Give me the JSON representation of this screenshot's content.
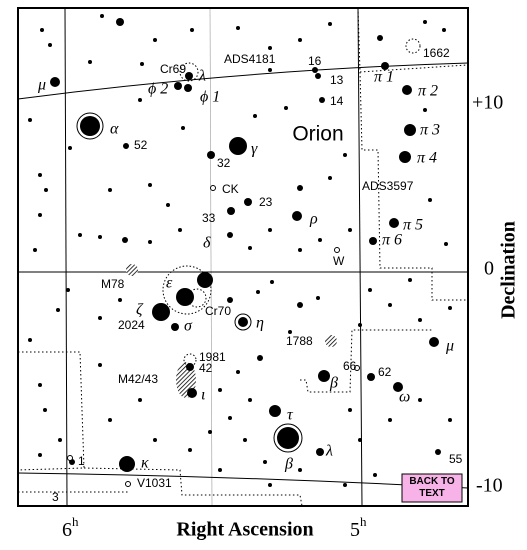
{
  "map": {
    "title": "Orion",
    "axes": {
      "x_label": "Right Ascension",
      "y_label": "Declination",
      "x_ticks": [
        {
          "main": "6",
          "sup": "h"
        },
        {
          "main": "5",
          "sup": "h"
        }
      ],
      "y_ticks": [
        "+10",
        "0",
        "-10"
      ]
    },
    "labels": [
      {
        "text": "Cr69"
      },
      {
        "text": "ADS4181"
      },
      {
        "text": "16"
      },
      {
        "text": "1662"
      },
      {
        "text": "μ"
      },
      {
        "text": "ϕ 2"
      },
      {
        "text": "λ"
      },
      {
        "text": "ϕ 1"
      },
      {
        "text": "13"
      },
      {
        "text": "14"
      },
      {
        "text": "π 1"
      },
      {
        "text": "π 2"
      },
      {
        "text": "α"
      },
      {
        "text": "52"
      },
      {
        "text": "π 3"
      },
      {
        "text": "π 4"
      },
      {
        "text": "32"
      },
      {
        "text": "γ"
      },
      {
        "text": "CK"
      },
      {
        "text": "ADS3597"
      },
      {
        "text": "23"
      },
      {
        "text": "33"
      },
      {
        "text": "ρ"
      },
      {
        "text": "π 5"
      },
      {
        "text": "π 6"
      },
      {
        "text": "W"
      },
      {
        "text": "δ"
      },
      {
        "text": "ε"
      },
      {
        "text": "M78"
      },
      {
        "text": "Cr70"
      },
      {
        "text": "ζ"
      },
      {
        "text": "2024"
      },
      {
        "text": "σ"
      },
      {
        "text": "η"
      },
      {
        "text": "1788"
      },
      {
        "text": "μ"
      },
      {
        "text": "1981"
      },
      {
        "text": "M42/43"
      },
      {
        "text": "42"
      },
      {
        "text": "66"
      },
      {
        "text": "62"
      },
      {
        "text": "β"
      },
      {
        "text": "ι"
      },
      {
        "text": "ω"
      },
      {
        "text": "τ"
      },
      {
        "text": "λ"
      },
      {
        "text": "β"
      },
      {
        "text": "κ"
      },
      {
        "text": "55"
      },
      {
        "text": "1"
      },
      {
        "text": "V1031"
      },
      {
        "text": "3"
      }
    ],
    "button": "BACK TO TEXT"
  }
}
